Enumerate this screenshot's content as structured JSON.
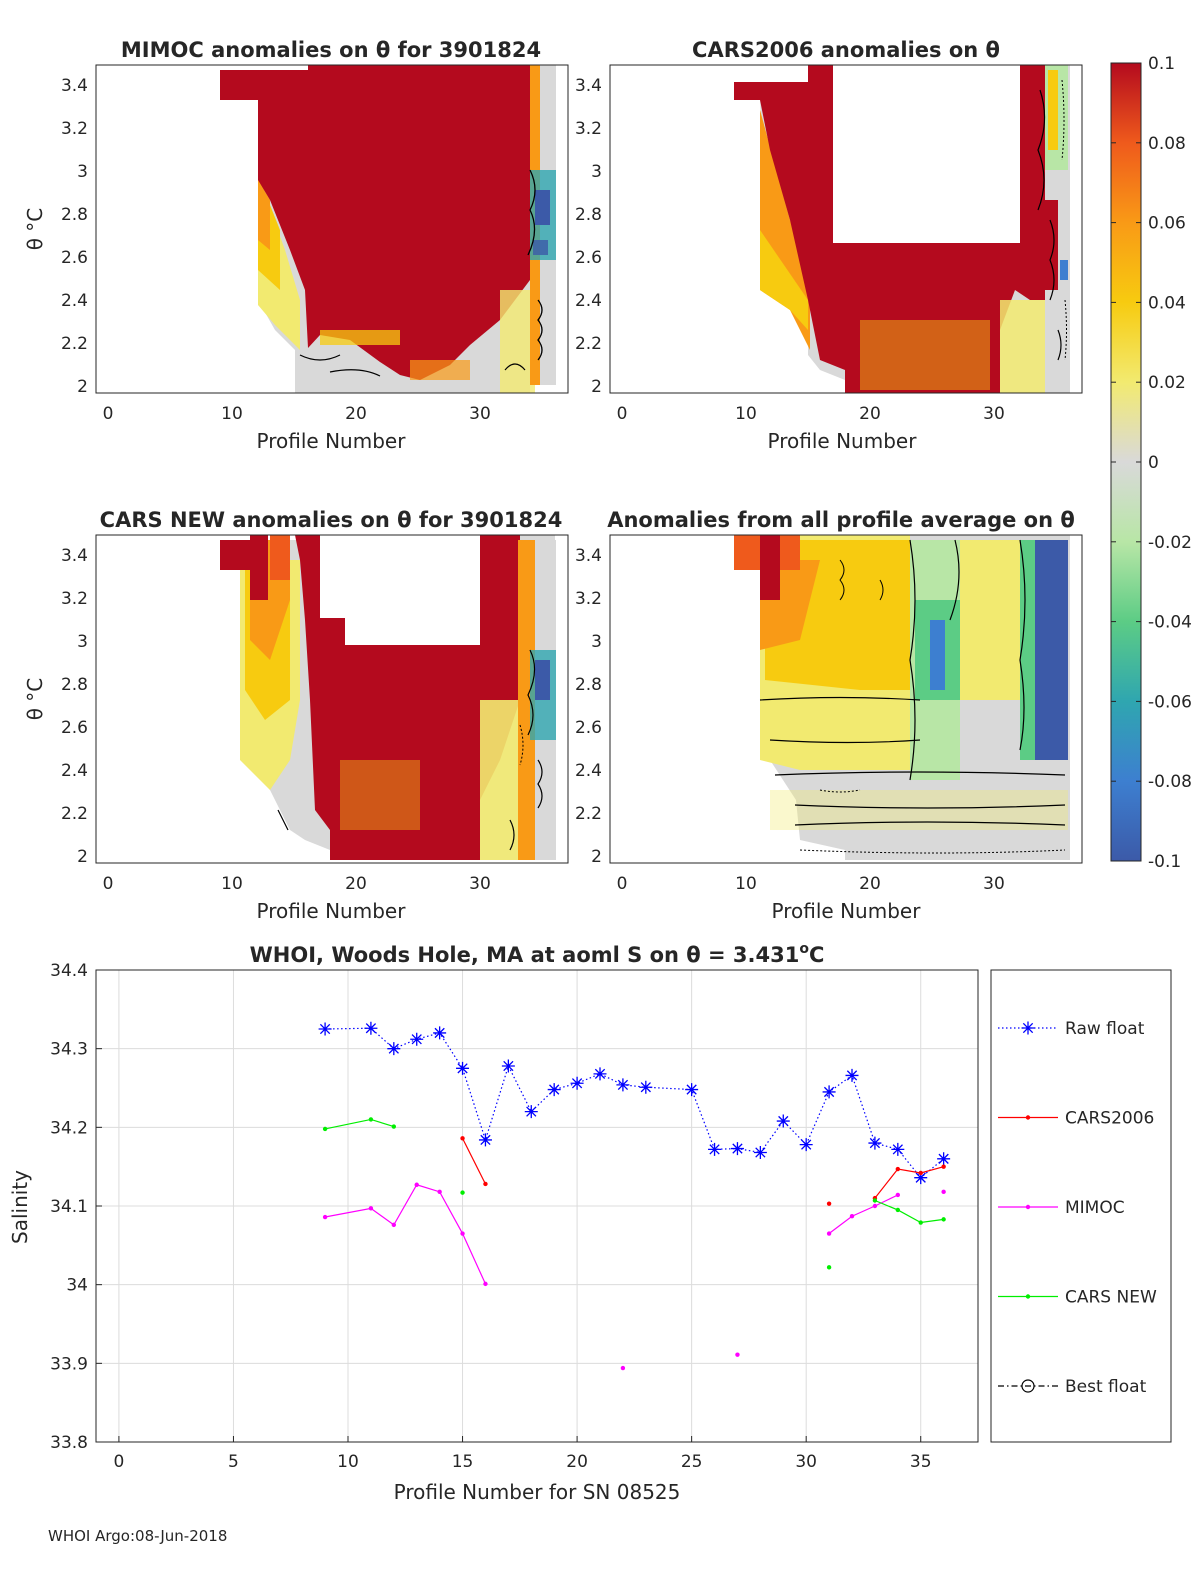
{
  "footer": "WHOI Argo:08-Jun-2018",
  "colorbar": {
    "range": [
      -0.1,
      0.1
    ],
    "ticks": [
      "0.1",
      "0.08",
      "0.06",
      "0.04",
      "0.02",
      "0",
      "-0.02",
      "-0.04",
      "-0.06",
      "-0.08",
      "-0.1"
    ],
    "stops": [
      "#3c5aa8",
      "#3d7fd0",
      "#2fa6b0",
      "#5ccc85",
      "#b8e6a6",
      "#d9d9d9",
      "#f2ea70",
      "#f7cb10",
      "#f99a16",
      "#ef5a1c",
      "#b40a1e"
    ]
  },
  "chart_data": [
    {
      "type": "heatmap",
      "title": "MIMOC anomalies on θ  for 3901824",
      "xlabel": "Profile Number",
      "ylabel": "θ °C",
      "xlim": [
        -1,
        37
      ],
      "ylim": [
        1.97,
        3.48
      ],
      "xticks": [
        "0",
        "10",
        "20",
        "30"
      ],
      "yticks": [
        "2",
        "2.2",
        "2.4",
        "2.6",
        "2.8",
        "3",
        "3.2",
        "3.4"
      ],
      "cells_description": "values from -0.1 to 0.1; mostly saturated red (>=0.1) over profiles ~12-33"
    },
    {
      "type": "heatmap",
      "title": "CARS2006 anomalies on θ",
      "xlabel": "Profile Number",
      "ylabel": "",
      "xlim": [
        -1,
        37
      ],
      "ylim": [
        1.97,
        3.48
      ],
      "xticks": [
        "0",
        "10",
        "20",
        "30"
      ],
      "yticks": [
        "2",
        "2.2",
        "2.4",
        "2.6",
        "2.8",
        "3",
        "3.2",
        "3.4"
      ]
    },
    {
      "type": "heatmap",
      "title": "CARS NEW anomalies on θ for 3901824",
      "xlabel": "Profile Number",
      "ylabel": "θ °C",
      "xlim": [
        -1,
        37
      ],
      "ylim": [
        1.97,
        3.48
      ],
      "xticks": [
        "0",
        "10",
        "20",
        "30"
      ],
      "yticks": [
        "2",
        "2.2",
        "2.4",
        "2.6",
        "2.8",
        "3",
        "3.2",
        "3.4"
      ]
    },
    {
      "type": "heatmap",
      "title": "Anomalies from all profile average on θ",
      "xlabel": "Profile Number",
      "ylabel": "",
      "xlim": [
        -1,
        37
      ],
      "ylim": [
        1.97,
        3.48
      ],
      "xticks": [
        "0",
        "10",
        "20",
        "30"
      ],
      "yticks": [
        "2",
        "2.2",
        "2.4",
        "2.6",
        "2.8",
        "3",
        "3.2",
        "3.4"
      ]
    },
    {
      "type": "line",
      "title_pre": "WHOI, Woods Hole, MA at aoml S on θ = 3.431",
      "title_sup": "o",
      "title_post": "C",
      "xlabel": "Profile Number for SN 08525",
      "ylabel": "Salinity",
      "xlim": [
        -1,
        37.5
      ],
      "ylim": [
        33.8,
        34.4
      ],
      "xticks": [
        0,
        5,
        10,
        15,
        20,
        25,
        30,
        35
      ],
      "yticks": [
        33.8,
        33.9,
        34,
        34.1,
        34.2,
        34.3,
        34.4
      ],
      "ytick_labels": [
        "33.8",
        "33.9",
        "34",
        "34.1",
        "34.2",
        "34.3",
        "34.4"
      ],
      "grid": true,
      "legend_position": "outside-right",
      "series": [
        {
          "name": "Raw float",
          "color": "#0000ff",
          "marker": "asterisk",
          "style": "dotted",
          "points": [
            [
              9,
              34.325
            ],
            [
              11,
              34.326
            ],
            [
              12,
              34.3
            ],
            [
              13,
              34.312
            ],
            [
              14,
              34.32
            ],
            [
              15,
              34.275
            ],
            [
              16,
              34.184
            ],
            [
              17,
              34.278
            ],
            [
              18,
              34.22
            ],
            [
              19,
              34.248
            ],
            [
              20,
              34.256
            ],
            [
              21,
              34.268
            ],
            [
              22,
              34.254
            ],
            [
              23,
              34.251
            ],
            [
              25,
              34.248
            ],
            [
              26,
              34.172
            ],
            [
              27,
              34.173
            ],
            [
              28,
              34.168
            ],
            [
              29,
              34.208
            ],
            [
              30,
              34.178
            ],
            [
              31,
              34.245
            ],
            [
              32,
              34.266
            ],
            [
              33,
              34.18
            ],
            [
              34,
              34.172
            ],
            [
              35,
              34.136
            ],
            [
              36,
              34.16
            ]
          ]
        },
        {
          "name": "CARS2006",
          "color": "#ff0000",
          "marker": "dot",
          "style": "solid",
          "segments": [
            [
              [
                15,
                34.186
              ],
              [
                16,
                34.128
              ]
            ],
            [
              [
                31,
                34.103
              ]
            ],
            [
              [
                33,
                34.11
              ],
              [
                34,
                34.147
              ],
              [
                35,
                34.142
              ],
              [
                36,
                34.15
              ]
            ]
          ]
        },
        {
          "name": "MIMOC",
          "color": "#ff00ff",
          "marker": "dot",
          "style": "solid",
          "segments": [
            [
              [
                9,
                34.086
              ],
              [
                11,
                34.097
              ],
              [
                12,
                34.076
              ],
              [
                13,
                34.127
              ],
              [
                14,
                34.118
              ],
              [
                15,
                34.065
              ],
              [
                16,
                34.001
              ]
            ],
            [
              [
                22,
                33.894
              ]
            ],
            [
              [
                27,
                33.911
              ]
            ],
            [
              [
                31,
                34.065
              ],
              [
                32,
                34.087
              ],
              [
                33,
                34.1
              ],
              [
                34,
                34.114
              ]
            ],
            [
              [
                36,
                34.118
              ]
            ]
          ]
        },
        {
          "name": "CARS NEW",
          "color": "#00ee00",
          "marker": "dot",
          "style": "solid",
          "segments": [
            [
              [
                9,
                34.198
              ],
              [
                11,
                34.21
              ],
              [
                12,
                34.201
              ]
            ],
            [
              [
                15,
                34.117
              ]
            ],
            [
              [
                31,
                34.022
              ]
            ],
            [
              [
                33,
                34.107
              ],
              [
                34,
                34.095
              ],
              [
                35,
                34.079
              ],
              [
                36,
                34.083
              ]
            ]
          ]
        },
        {
          "name": "Best float",
          "color": "#000000",
          "marker": "circle",
          "style": "dashdot",
          "points": []
        }
      ]
    }
  ]
}
